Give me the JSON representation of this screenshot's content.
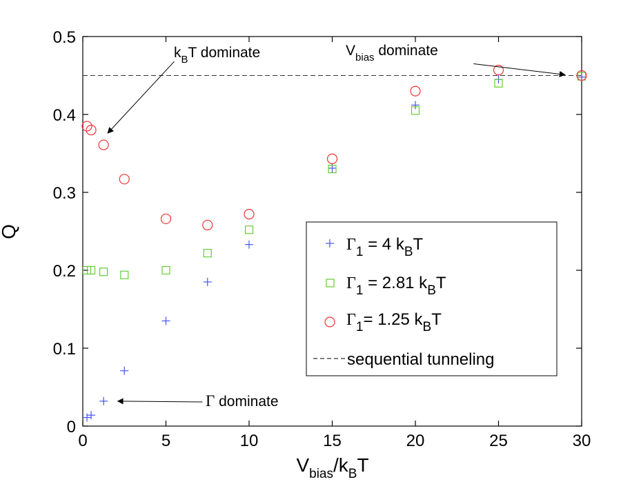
{
  "chart_data": {
    "type": "scatter",
    "title": "",
    "xlabel": {
      "main": "V",
      "sub1": "bias",
      "mid": "/k",
      "sub2": "B",
      "end": "T"
    },
    "ylabel": "Q",
    "xlim": [
      0,
      30
    ],
    "ylim": [
      0,
      0.5
    ],
    "x_ticks": [
      "0",
      "5",
      "10",
      "15",
      "20",
      "25",
      "30"
    ],
    "y_ticks": [
      "0",
      "0.1",
      "0.2",
      "0.3",
      "0.4",
      "0.5"
    ],
    "grid": false,
    "legend_position": "lower-right",
    "series": [
      {
        "name": "Γ1 = 4 kBT",
        "legend": {
          "greek": "Γ",
          "sub": "1",
          "rest": " = 4 k",
          "sub2": "B",
          "end": "T"
        },
        "marker": "plus",
        "color": "#4455ee",
        "points": [
          [
            0.25,
            0.011
          ],
          [
            0.5,
            0.014
          ],
          [
            1.25,
            0.032
          ],
          [
            2.5,
            0.071
          ],
          [
            5,
            0.135
          ],
          [
            7.5,
            0.185
          ],
          [
            10,
            0.233
          ],
          [
            15,
            0.331
          ],
          [
            20,
            0.412
          ],
          [
            25,
            0.445
          ],
          [
            30,
            0.448
          ]
        ]
      },
      {
        "name": "Γ1 = 2.81 kBT",
        "legend": {
          "greek": "Γ",
          "sub": "1",
          "rest": " = 2.81 k",
          "sub2": "B",
          "end": "T"
        },
        "marker": "square",
        "color": "#66cc33",
        "points": [
          [
            0.25,
            0.2
          ],
          [
            0.5,
            0.2
          ],
          [
            1.25,
            0.198
          ],
          [
            2.5,
            0.194
          ],
          [
            5,
            0.2
          ],
          [
            7.5,
            0.222
          ],
          [
            10,
            0.252
          ],
          [
            15,
            0.33
          ],
          [
            20,
            0.405
          ],
          [
            25,
            0.44
          ],
          [
            30,
            0.449
          ]
        ]
      },
      {
        "name": "Γ1= 1.25 kBT",
        "legend": {
          "greek": "Γ",
          "sub": "1",
          "rest": "= 1.25 k",
          "sub2": "B",
          "end": "T"
        },
        "marker": "circle",
        "color": "#ee3333",
        "points": [
          [
            0.25,
            0.385
          ],
          [
            0.5,
            0.38
          ],
          [
            1.25,
            0.361
          ],
          [
            2.5,
            0.317
          ],
          [
            5,
            0.266
          ],
          [
            7.5,
            0.258
          ],
          [
            10,
            0.272
          ],
          [
            15,
            0.343
          ],
          [
            20,
            0.43
          ],
          [
            25,
            0.457
          ],
          [
            30,
            0.45
          ]
        ]
      },
      {
        "name": "sequential tunneling",
        "legend": {
          "text": "sequential tunneling"
        },
        "marker": "dashed-line",
        "color": "#333333",
        "y": 0.45
      }
    ],
    "annotations": [
      {
        "id": "kbt",
        "text": {
          "pre": "k",
          "sub": "B",
          "post": "T dominate"
        },
        "tail": [
          5.5,
          0.468
        ],
        "head": [
          1.5,
          0.376
        ]
      },
      {
        "id": "vbias",
        "text": {
          "pre": "V",
          "sub": "bias",
          "post": " dominate"
        },
        "tail": [
          23.5,
          0.465
        ],
        "head": [
          29.0,
          0.451
        ]
      },
      {
        "id": "gamma",
        "text": {
          "greek": "Γ",
          "post": " dominate"
        },
        "tail": [
          7.2,
          0.031
        ],
        "head": [
          2.1,
          0.032
        ]
      }
    ]
  }
}
